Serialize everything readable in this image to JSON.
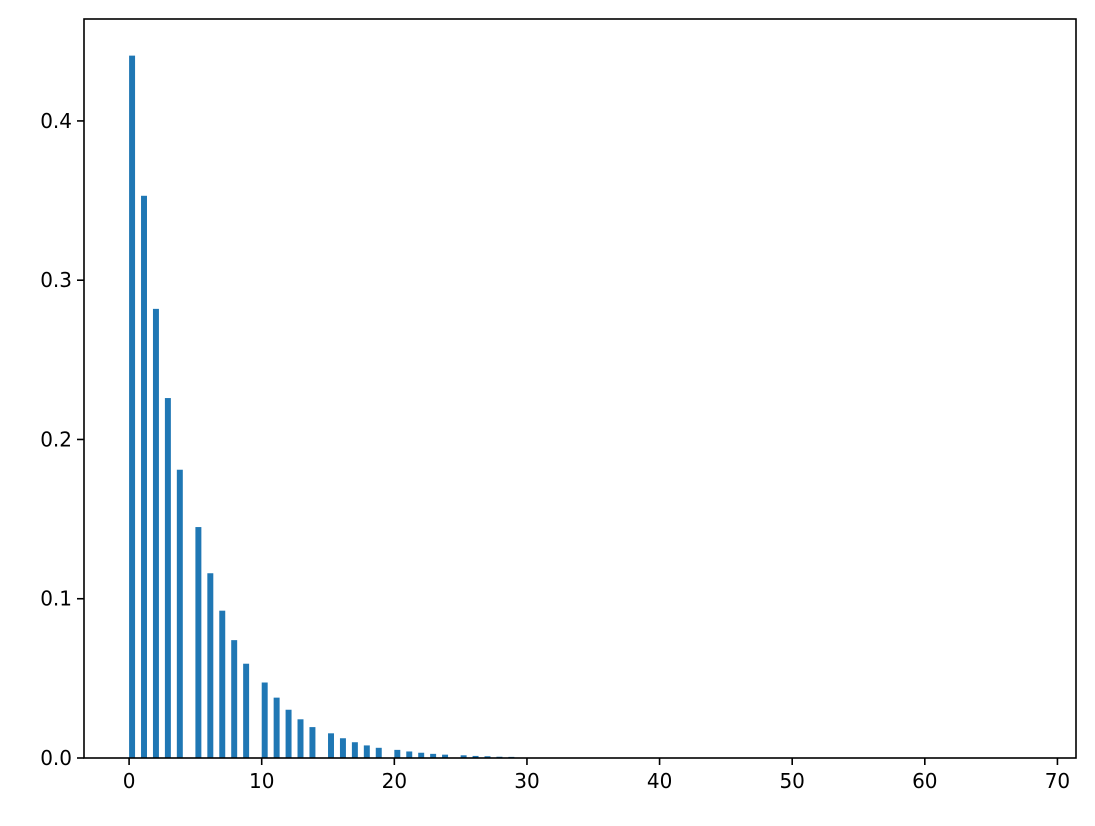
{
  "chart_data": {
    "type": "bar",
    "title": "",
    "xlabel": "",
    "ylabel": "",
    "xlim": [
      -3.4,
      71.4
    ],
    "ylim": [
      0,
      0.464
    ],
    "grid": false,
    "bar_color": "#1f77b4",
    "bar_width": 0.45,
    "x": [
      0,
      0.9,
      1.8,
      2.7,
      3.6,
      5,
      5.9,
      6.8,
      7.7,
      8.6,
      10,
      10.9,
      11.8,
      12.7,
      13.6,
      15,
      15.9,
      16.8,
      17.7,
      18.6,
      20,
      20.9,
      21.8,
      22.7,
      23.6,
      25,
      25.9,
      26.8,
      27.7,
      28.6
    ],
    "values": [
      0.441,
      0.353,
      0.282,
      0.226,
      0.181,
      0.145,
      0.116,
      0.0925,
      0.074,
      0.0592,
      0.0474,
      0.0379,
      0.0303,
      0.0243,
      0.0194,
      0.0155,
      0.0124,
      0.0099,
      0.0079,
      0.0064,
      0.0051,
      0.0041,
      0.0033,
      0.0026,
      0.0021,
      0.0017,
      0.0013,
      0.0011,
      0.0008,
      0.0007
    ],
    "xticks": [
      0,
      10,
      20,
      30,
      40,
      50,
      60,
      70
    ],
    "xtick_labels": [
      "0",
      "10",
      "20",
      "30",
      "40",
      "50",
      "60",
      "70"
    ],
    "yticks": [
      0.0,
      0.1,
      0.2,
      0.3,
      0.4
    ],
    "ytick_labels": [
      "0.0",
      "0.1",
      "0.2",
      "0.3",
      "0.4"
    ]
  }
}
